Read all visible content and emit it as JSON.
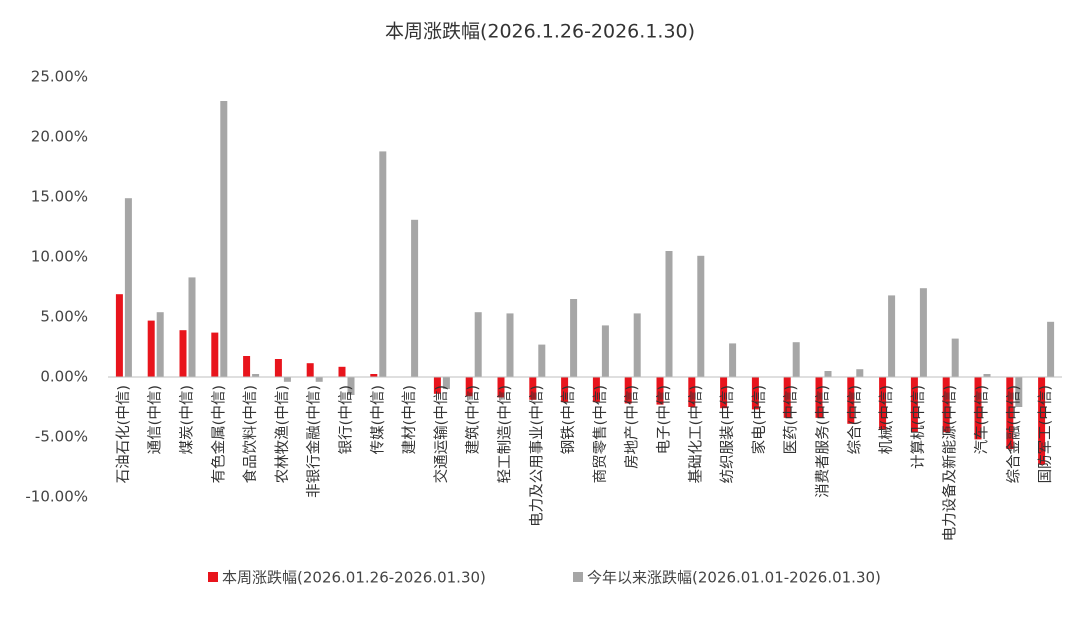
{
  "chart_data": {
    "type": "bar",
    "title": "本周涨跌幅(2026.1.26-2026.1.30)",
    "categories": [
      "石油石化(中信)",
      "通信(中信)",
      "煤炭(中信)",
      "有色金属(中信)",
      "食品饮料(中信)",
      "农林牧渔(中信)",
      "非银行金融(中信)",
      "银行(中信)",
      "传媒(中信)",
      "建材(中信)",
      "交通运输(中信)",
      "建筑(中信)",
      "轻工制造(中信)",
      "电力及公用事业(中信)",
      "钢铁(中信)",
      "商贸零售(中信)",
      "房地产(中信)",
      "电子(中信)",
      "基础化工(中信)",
      "纺织服装(中信)",
      "家电(中信)",
      "医药(中信)",
      "消费者服务(中信)",
      "综合(中信)",
      "机械(中信)",
      "计算机(中信)",
      "电力设备及新能源(中信)",
      "汽车(中信)",
      "综合金融(中信)",
      "国防军工(中信)"
    ],
    "series": [
      {
        "name": "本周涨跌幅(2026.01.26-2026.01.30)",
        "color": "#e8141c",
        "values": [
          6.9,
          4.7,
          3.9,
          3.7,
          1.75,
          1.5,
          1.15,
          0.85,
          0.25,
          0.0,
          -1.4,
          -1.6,
          -1.7,
          -1.9,
          -2.1,
          -2.1,
          -2.2,
          -2.3,
          -2.5,
          -2.6,
          -2.7,
          -3.4,
          -3.4,
          -3.9,
          -4.4,
          -4.6,
          -4.6,
          -5.2,
          -6.0,
          -7.3
        ]
      },
      {
        "name": "今年以来涨跌幅(2026.01.01-2026.01.30)",
        "color": "#a6a6a6",
        "values": [
          14.9,
          5.4,
          8.3,
          23.0,
          0.25,
          -0.4,
          -0.4,
          -1.5,
          18.8,
          13.1,
          -1.0,
          5.4,
          5.3,
          2.7,
          6.5,
          4.3,
          5.3,
          10.5,
          10.1,
          2.8,
          0.0,
          2.9,
          0.5,
          0.65,
          6.8,
          7.4,
          3.2,
          0.25,
          -2.5,
          4.6
        ]
      }
    ],
    "ylim": [
      -10,
      25
    ],
    "yticks": [
      {
        "value": -10,
        "label": "-10.00%"
      },
      {
        "value": -5,
        "label": "-5.00%"
      },
      {
        "value": 0,
        "label": "0.00%"
      },
      {
        "value": 5,
        "label": "5.00%"
      },
      {
        "value": 10,
        "label": "10.00%"
      },
      {
        "value": 15,
        "label": "15.00%"
      },
      {
        "value": 20,
        "label": "20.00%"
      },
      {
        "value": 25,
        "label": "25.00%"
      }
    ],
    "grid": false,
    "legend": "bottom"
  }
}
